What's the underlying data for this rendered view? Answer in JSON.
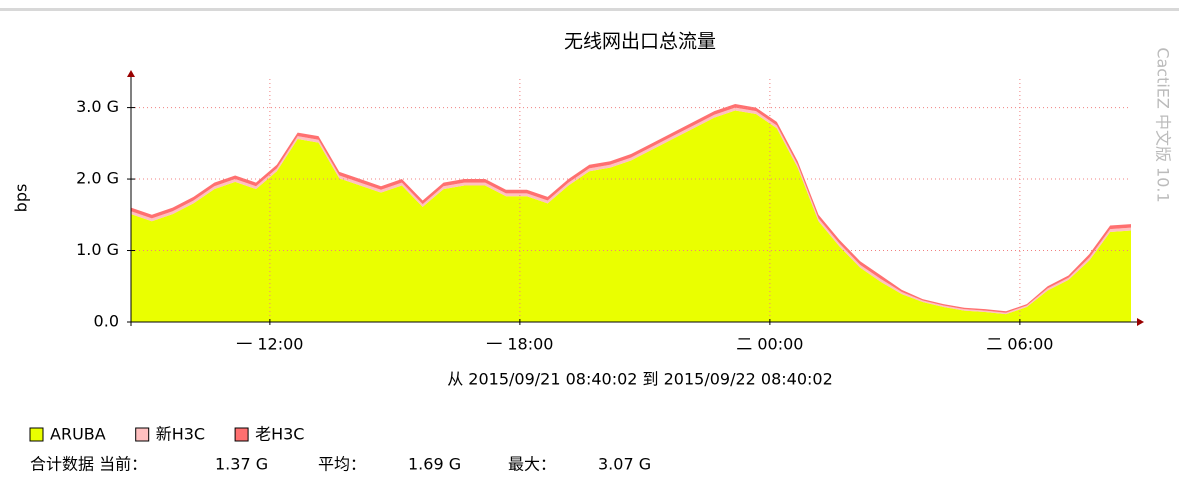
{
  "chart_data": {
    "type": "stacked_area",
    "title": "无线网出口总流量",
    "y_label": "bps",
    "x_label": "从 2015/09/21 08:40:02 到 2015/09/22 08:40:02",
    "watermark": "CactiEZ 中文版 10.1",
    "x": [
      8.667,
      9.167,
      9.667,
      10.167,
      10.667,
      11.167,
      11.667,
      12.167,
      12.667,
      13.167,
      13.667,
      14.167,
      14.667,
      15.167,
      15.667,
      16.167,
      16.667,
      17.167,
      17.667,
      18.167,
      18.667,
      19.167,
      19.667,
      20.167,
      20.667,
      21.167,
      21.667,
      22.167,
      22.667,
      23.167,
      23.667,
      24.167,
      24.667,
      25.167,
      25.667,
      26.167,
      26.667,
      27.167,
      27.667,
      28.167,
      28.667,
      29.167,
      29.667,
      30.167,
      30.667,
      31.167,
      31.667,
      32.167,
      32.667
    ],
    "xlim": [
      8.667,
      32.667
    ],
    "xticks": [
      {
        "value": 12,
        "label": "一 12:00"
      },
      {
        "value": 18,
        "label": "一 18:00"
      },
      {
        "value": 24,
        "label": "二 00:00"
      },
      {
        "value": 30,
        "label": "二 06:00"
      }
    ],
    "ylim": [
      0,
      3.4
    ],
    "yticks": [
      {
        "value": 0,
        "label": "0.0"
      },
      {
        "value": 1,
        "label": "1.0 G"
      },
      {
        "value": 2,
        "label": "2.0 G"
      },
      {
        "value": 3,
        "label": "3.0 G"
      }
    ],
    "grid": true,
    "series": [
      {
        "name": "ARUBA",
        "color": "#EAFF00",
        "values": [
          1.51,
          1.41,
          1.51,
          1.66,
          1.86,
          1.96,
          1.86,
          2.11,
          2.56,
          2.51,
          2.01,
          1.91,
          1.81,
          1.91,
          1.61,
          1.86,
          1.91,
          1.91,
          1.76,
          1.76,
          1.66,
          1.91,
          2.11,
          2.16,
          2.26,
          2.41,
          2.56,
          2.71,
          2.86,
          2.96,
          2.91,
          2.71,
          2.16,
          1.41,
          1.06,
          0.76,
          0.56,
          0.39,
          0.28,
          0.21,
          0.16,
          0.14,
          0.11,
          0.21,
          0.44,
          0.59,
          0.86,
          1.26,
          1.28
        ]
      },
      {
        "name": "新H3C",
        "color": "#FFC0C0",
        "values": [
          0.04,
          0.04,
          0.04,
          0.04,
          0.04,
          0.04,
          0.04,
          0.04,
          0.04,
          0.04,
          0.04,
          0.04,
          0.04,
          0.04,
          0.04,
          0.04,
          0.04,
          0.04,
          0.04,
          0.04,
          0.04,
          0.04,
          0.04,
          0.04,
          0.04,
          0.04,
          0.04,
          0.04,
          0.04,
          0.04,
          0.04,
          0.04,
          0.04,
          0.04,
          0.04,
          0.04,
          0.04,
          0.03,
          0.02,
          0.02,
          0.02,
          0.02,
          0.02,
          0.02,
          0.03,
          0.03,
          0.04,
          0.04,
          0.04
        ]
      },
      {
        "name": "老H3C",
        "color": "#FF7070",
        "values": [
          0.05,
          0.05,
          0.05,
          0.05,
          0.05,
          0.05,
          0.05,
          0.05,
          0.05,
          0.05,
          0.05,
          0.05,
          0.05,
          0.05,
          0.05,
          0.05,
          0.05,
          0.05,
          0.05,
          0.05,
          0.05,
          0.05,
          0.05,
          0.05,
          0.05,
          0.05,
          0.05,
          0.05,
          0.05,
          0.05,
          0.05,
          0.05,
          0.05,
          0.05,
          0.05,
          0.05,
          0.05,
          0.03,
          0.02,
          0.02,
          0.02,
          0.02,
          0.02,
          0.02,
          0.03,
          0.03,
          0.05,
          0.05,
          0.05
        ]
      }
    ],
    "summary": {
      "label": "合计数据 当前：",
      "current": "1.37 G",
      "average_label": "平均：",
      "average": "1.69 G",
      "max_label": "最大：",
      "max": "3.07 G"
    }
  }
}
